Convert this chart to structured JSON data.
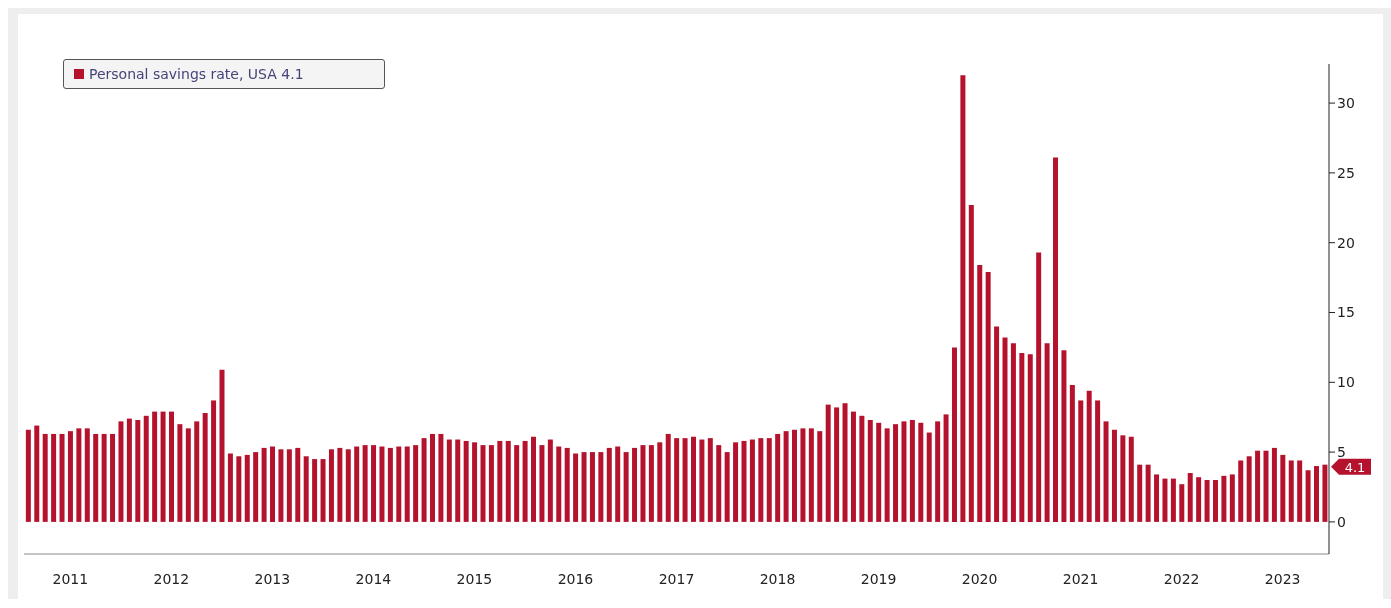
{
  "chart_data": {
    "type": "bar",
    "categories": [
      null,
      null,
      null,
      null,
      null,
      "2011",
      null,
      null,
      null,
      null,
      null,
      null,
      null,
      null,
      null,
      null,
      null,
      "2012",
      null,
      null,
      null,
      null,
      null,
      null,
      null,
      null,
      null,
      null,
      null,
      "2013",
      null,
      null,
      null,
      null,
      null,
      null,
      null,
      null,
      null,
      null,
      null,
      "2014",
      null,
      null,
      null,
      null,
      null,
      null,
      null,
      null,
      null,
      null,
      null,
      "2015",
      null,
      null,
      null,
      null,
      null,
      null,
      null,
      null,
      null,
      null,
      null,
      "2016",
      null,
      null,
      null,
      null,
      null,
      null,
      null,
      null,
      null,
      null,
      null,
      "2017",
      null,
      null,
      null,
      null,
      null,
      null,
      null,
      null,
      null,
      null,
      null,
      "2018",
      null,
      null,
      null,
      null,
      null,
      null,
      null,
      null,
      null,
      null,
      null,
      "2019",
      null,
      null,
      null,
      null,
      null,
      null,
      null,
      null,
      null,
      null,
      null,
      "2020",
      null,
      null,
      null,
      null,
      null,
      null,
      null,
      null,
      null,
      null,
      null,
      "2021",
      null,
      null,
      null,
      null,
      null,
      null,
      null,
      null,
      null,
      null,
      null,
      "2022",
      null,
      null,
      null,
      null,
      null,
      null,
      null,
      null,
      null,
      null,
      null,
      "2023",
      null,
      null,
      null,
      null,
      null
    ],
    "series": [
      {
        "name": "Personal savings rate, USA 4.1",
        "color": "#b5122e",
        "values": [
          6.6,
          6.9,
          6.3,
          6.3,
          6.3,
          6.5,
          6.7,
          6.7,
          6.3,
          6.3,
          6.3,
          7.2,
          7.4,
          7.3,
          7.6,
          7.9,
          7.9,
          7.9,
          7.0,
          6.7,
          7.2,
          7.8,
          8.7,
          10.9,
          4.9,
          4.7,
          4.8,
          5.0,
          5.3,
          5.4,
          5.2,
          5.2,
          5.3,
          4.7,
          4.5,
          4.5,
          5.2,
          5.3,
          5.2,
          5.4,
          5.5,
          5.5,
          5.4,
          5.3,
          5.4,
          5.4,
          5.5,
          6.0,
          6.3,
          6.3,
          5.9,
          5.9,
          5.8,
          5.7,
          5.5,
          5.5,
          5.8,
          5.8,
          5.5,
          5.8,
          6.1,
          5.5,
          5.9,
          5.4,
          5.3,
          4.9,
          5.0,
          5.0,
          5.0,
          5.3,
          5.4,
          5.0,
          5.3,
          5.5,
          5.5,
          5.7,
          6.3,
          6.0,
          6.0,
          6.1,
          5.9,
          6.0,
          5.5,
          5.0,
          5.7,
          5.8,
          5.9,
          6.0,
          6.0,
          6.3,
          6.5,
          6.6,
          6.7,
          6.7,
          6.5,
          8.4,
          8.2,
          8.5,
          7.9,
          7.6,
          7.3,
          7.1,
          6.7,
          7.0,
          7.2,
          7.3,
          7.1,
          6.4,
          7.2,
          7.7,
          12.5,
          32.0,
          22.7,
          18.4,
          17.9,
          14.0,
          13.2,
          12.8,
          12.1,
          12.0,
          19.3,
          12.8,
          26.1,
          12.3,
          9.8,
          8.7,
          9.4,
          8.7,
          7.2,
          6.6,
          6.2,
          6.1,
          4.1,
          4.1,
          3.4,
          3.1,
          3.1,
          2.7,
          3.5,
          3.2,
          3.0,
          3.0,
          3.3,
          3.4,
          4.4,
          4.7,
          5.1,
          5.1,
          5.3,
          4.8,
          4.4,
          4.4,
          3.7,
          4.0,
          4.1
        ]
      }
    ],
    "ylim": [
      -2.3,
      32.8
    ],
    "yticks": [
      0,
      5,
      10,
      15,
      20,
      25,
      30
    ],
    "grid": false,
    "legend": "top left",
    "annotations": [
      "4.1"
    ]
  }
}
